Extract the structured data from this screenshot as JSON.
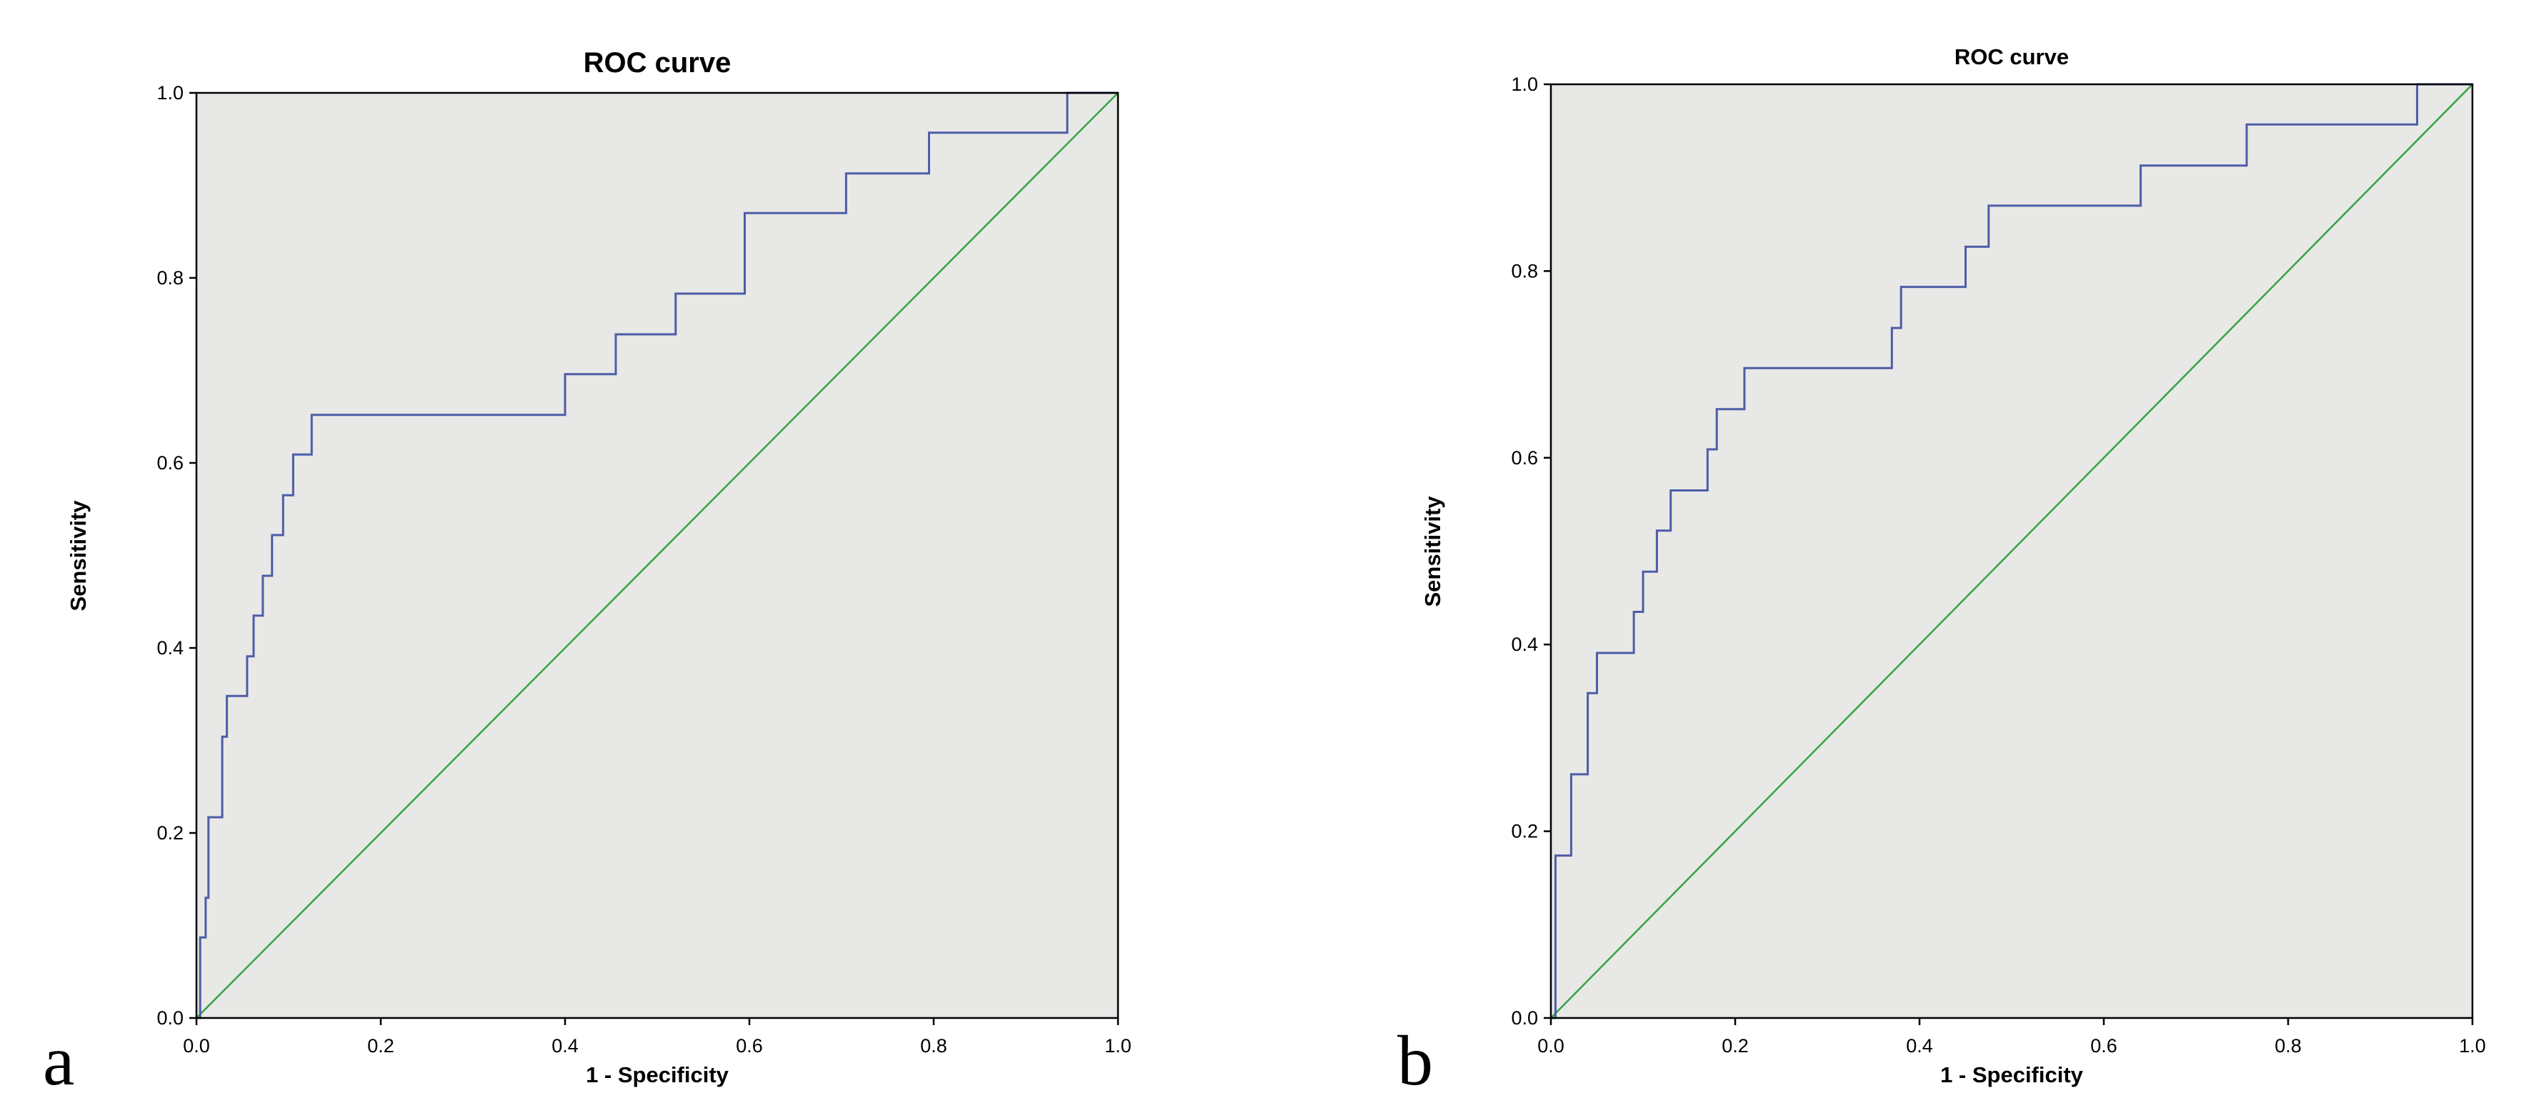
{
  "figure": {
    "background": "#ffffff",
    "panel_count": 2
  },
  "chart_data": [
    {
      "id": "a",
      "panel_label": "a",
      "type": "line",
      "title": "ROC curve",
      "xlabel": "1 - Specificity",
      "ylabel": "Sensitivity",
      "xlim": [
        0,
        1
      ],
      "ylim": [
        0,
        1
      ],
      "xticks": [
        "0.0",
        "0.2",
        "0.4",
        "0.6",
        "0.8",
        "1.0"
      ],
      "yticks": [
        "0.0",
        "0.2",
        "0.4",
        "0.6",
        "0.8",
        "1.0"
      ],
      "grid": false,
      "legend": "none",
      "colors": {
        "plot_bg": "#e8e8e6",
        "curve": "#4d5da7",
        "reference": "#36a345",
        "frame": "#000000"
      },
      "series": [
        {
          "name": "ROC curve",
          "role": "roc-curve",
          "color": "#4d5da7",
          "interpolation": "step-vertices",
          "points": [
            [
              0.0,
              0.0
            ],
            [
              0.004,
              0.0
            ],
            [
              0.004,
              0.087
            ],
            [
              0.01,
              0.087
            ],
            [
              0.01,
              0.13
            ],
            [
              0.013,
              0.13
            ],
            [
              0.013,
              0.217
            ],
            [
              0.028,
              0.217
            ],
            [
              0.028,
              0.304
            ],
            [
              0.033,
              0.304
            ],
            [
              0.033,
              0.348
            ],
            [
              0.055,
              0.348
            ],
            [
              0.055,
              0.391
            ],
            [
              0.062,
              0.391
            ],
            [
              0.062,
              0.435
            ],
            [
              0.072,
              0.435
            ],
            [
              0.072,
              0.478
            ],
            [
              0.082,
              0.478
            ],
            [
              0.082,
              0.522
            ],
            [
              0.094,
              0.522
            ],
            [
              0.094,
              0.565
            ],
            [
              0.105,
              0.565
            ],
            [
              0.105,
              0.609
            ],
            [
              0.125,
              0.609
            ],
            [
              0.125,
              0.652
            ],
            [
              0.4,
              0.652
            ],
            [
              0.4,
              0.696
            ],
            [
              0.455,
              0.696
            ],
            [
              0.455,
              0.739
            ],
            [
              0.52,
              0.739
            ],
            [
              0.52,
              0.783
            ],
            [
              0.595,
              0.783
            ],
            [
              0.595,
              0.87
            ],
            [
              0.705,
              0.87
            ],
            [
              0.705,
              0.913
            ],
            [
              0.795,
              0.913
            ],
            [
              0.795,
              0.957
            ],
            [
              0.945,
              0.957
            ],
            [
              0.945,
              1.0
            ],
            [
              1.0,
              1.0
            ]
          ]
        },
        {
          "name": "Reference line",
          "role": "reference-line",
          "color": "#36a345",
          "interpolation": "linear",
          "points": [
            [
              0,
              0
            ],
            [
              1,
              1
            ]
          ]
        }
      ]
    },
    {
      "id": "b",
      "panel_label": "b",
      "type": "line",
      "title": "ROC curve",
      "xlabel": "1 - Specificity",
      "ylabel": "Sensitivity",
      "xlim": [
        0,
        1
      ],
      "ylim": [
        0,
        1
      ],
      "xticks": [
        "0.0",
        "0.2",
        "0.4",
        "0.6",
        "0.8",
        "1.0"
      ],
      "yticks": [
        "0.0",
        "0.2",
        "0.4",
        "0.6",
        "0.8",
        "1.0"
      ],
      "grid": false,
      "legend": "none",
      "colors": {
        "plot_bg": "#e8e8e6",
        "curve": "#4d5da7",
        "reference": "#36a345",
        "frame": "#000000"
      },
      "series": [
        {
          "name": "ROC curve",
          "role": "roc-curve",
          "color": "#4d5da7",
          "interpolation": "step-vertices",
          "points": [
            [
              0.0,
              0.0
            ],
            [
              0.005,
              0.0
            ],
            [
              0.005,
              0.174
            ],
            [
              0.022,
              0.174
            ],
            [
              0.022,
              0.261
            ],
            [
              0.04,
              0.261
            ],
            [
              0.04,
              0.348
            ],
            [
              0.05,
              0.348
            ],
            [
              0.05,
              0.391
            ],
            [
              0.09,
              0.391
            ],
            [
              0.09,
              0.435
            ],
            [
              0.1,
              0.435
            ],
            [
              0.1,
              0.478
            ],
            [
              0.115,
              0.478
            ],
            [
              0.115,
              0.522
            ],
            [
              0.13,
              0.522
            ],
            [
              0.13,
              0.565
            ],
            [
              0.17,
              0.565
            ],
            [
              0.17,
              0.609
            ],
            [
              0.18,
              0.609
            ],
            [
              0.18,
              0.652
            ],
            [
              0.21,
              0.652
            ],
            [
              0.21,
              0.696
            ],
            [
              0.37,
              0.696
            ],
            [
              0.37,
              0.739
            ],
            [
              0.38,
              0.739
            ],
            [
              0.38,
              0.783
            ],
            [
              0.45,
              0.783
            ],
            [
              0.45,
              0.826
            ],
            [
              0.475,
              0.826
            ],
            [
              0.475,
              0.87
            ],
            [
              0.64,
              0.87
            ],
            [
              0.64,
              0.913
            ],
            [
              0.755,
              0.913
            ],
            [
              0.755,
              0.957
            ],
            [
              0.94,
              0.957
            ],
            [
              0.94,
              1.0
            ],
            [
              1.0,
              1.0
            ]
          ]
        },
        {
          "name": "Reference line",
          "role": "reference-line",
          "color": "#36a345",
          "interpolation": "linear",
          "points": [
            [
              0,
              0
            ],
            [
              1,
              1
            ]
          ]
        }
      ]
    }
  ]
}
